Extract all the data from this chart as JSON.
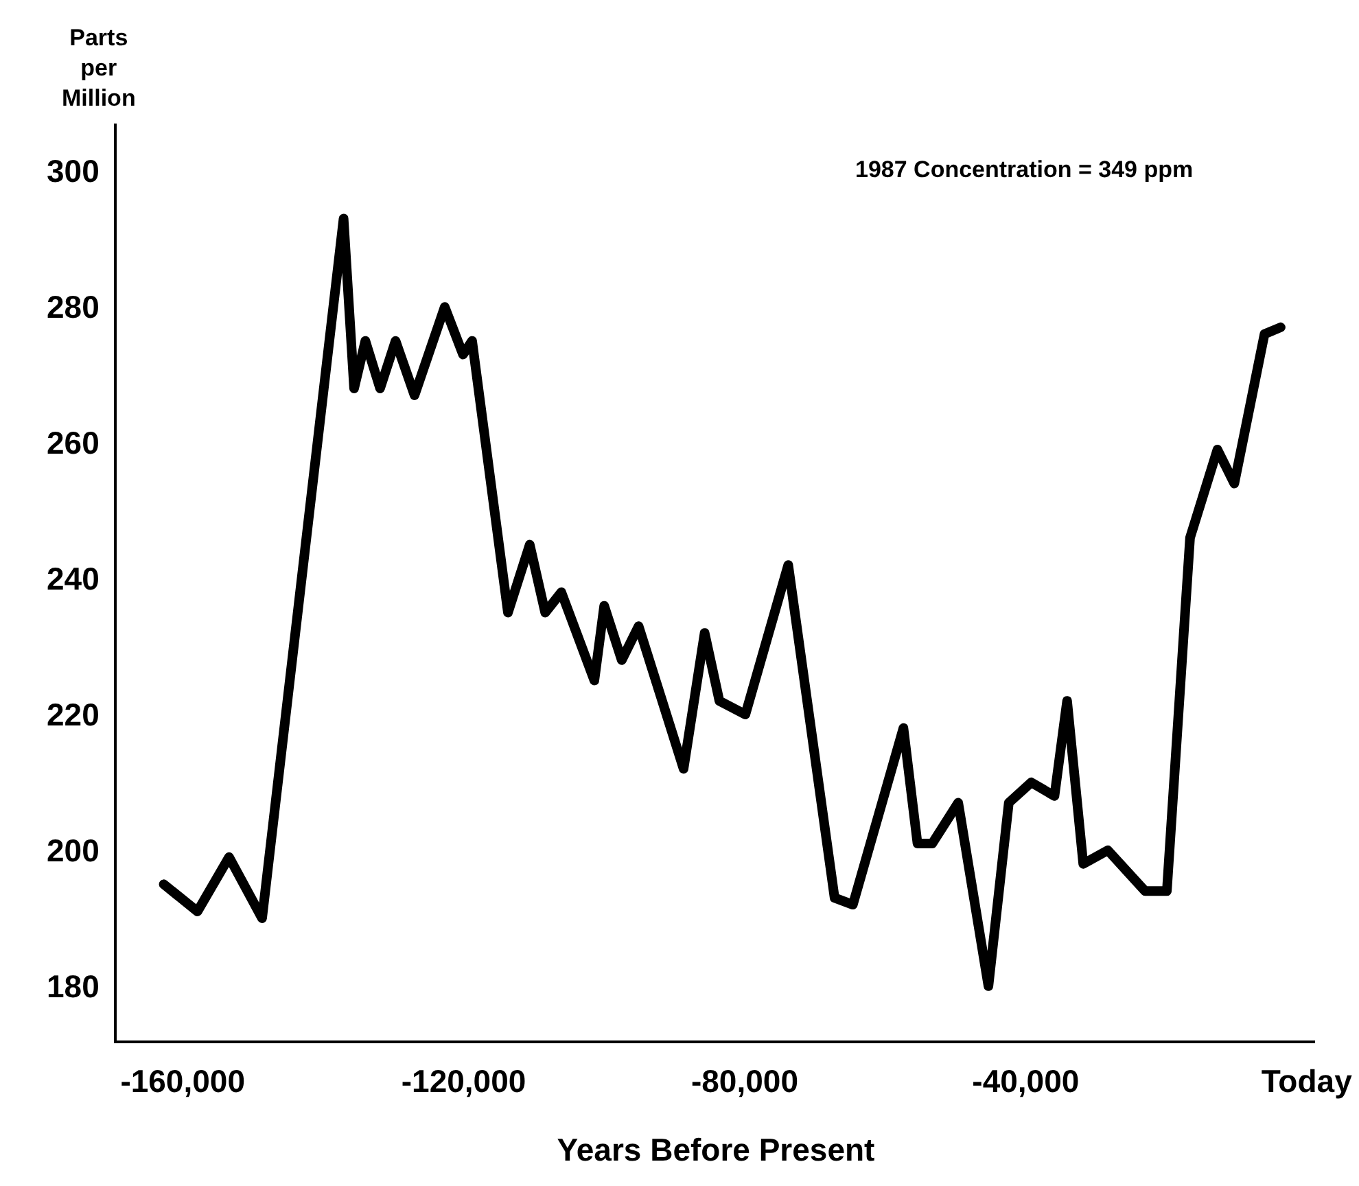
{
  "chart_data": {
    "type": "line",
    "xlabel": "Years Before Present",
    "ylabel": "Parts per Million",
    "annotations": [
      "1987 Concentration = 349 ppm"
    ],
    "x": [
      -162700,
      -157900,
      -153400,
      -148700,
      -137100,
      -135600,
      -134000,
      -131900,
      -129700,
      -127000,
      -122700,
      -120100,
      -118800,
      -113700,
      -110600,
      -108400,
      -106100,
      -101400,
      -100000,
      -97500,
      -95100,
      -88700,
      -85700,
      -83600,
      -79900,
      -73800,
      -67200,
      -64600,
      -57400,
      -55400,
      -53300,
      -49600,
      -45300,
      -42400,
      -39200,
      -35900,
      -34100,
      -31800,
      -28300,
      -23000,
      -19900,
      -16600,
      -12700,
      -10300,
      -6000,
      -3700
    ],
    "series": [
      {
        "color": "#000000",
        "values": [
          195,
          191,
          199,
          190,
          293,
          268,
          275,
          268,
          275,
          267,
          280,
          273,
          275,
          235,
          245,
          235,
          238,
          225,
          236,
          228,
          233,
          212,
          232,
          222,
          220,
          242,
          193,
          192,
          218,
          201,
          201,
          207,
          180,
          207,
          210,
          208,
          222,
          198,
          200,
          194,
          194,
          246,
          259,
          254,
          276,
          277
        ]
      }
    ],
    "xlim": [
      -169400,
      1200
    ],
    "ylim": [
      172,
      307
    ],
    "xticks": [
      {
        "value": -160000,
        "label": "-160,000"
      },
      {
        "value": -120000,
        "label": "-120,000"
      },
      {
        "value": -80000,
        "label": "-80,000"
      },
      {
        "value": -40000,
        "label": "-40,000"
      },
      {
        "value": 0,
        "label": "Today"
      }
    ],
    "yticks": [
      180,
      200,
      220,
      240,
      260,
      280,
      300
    ],
    "grid": false,
    "marker": "none",
    "line_style": "solid"
  }
}
